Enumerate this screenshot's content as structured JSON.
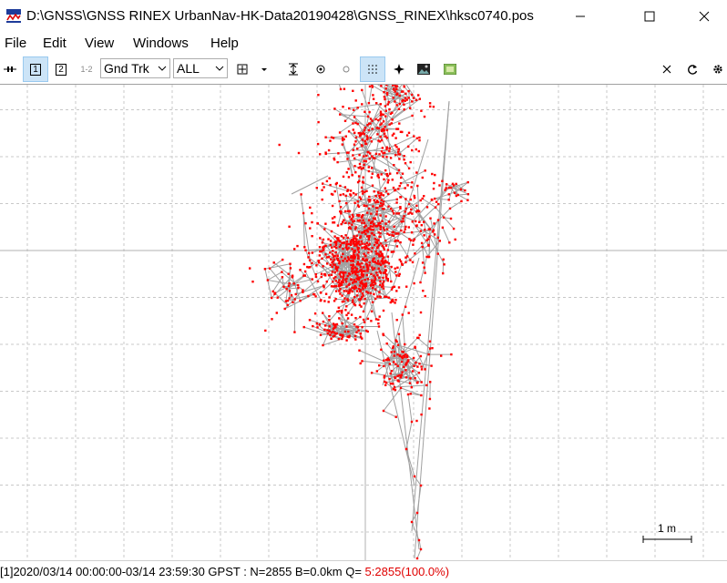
{
  "window": {
    "title": "D:\\GNSS\\GNSS RINEX UrbanNav-HK-Data20190428\\GNSS_RINEX\\hksc0740.pos",
    "icon": "rtkplot-app-icon"
  },
  "menu": [
    "File",
    "Edit",
    "View",
    "Windows",
    "Help"
  ],
  "toolbar": {
    "btn1": "1",
    "btn2": "2",
    "btn12": "1-2",
    "plot_type": "Gnd Trk",
    "sat_filter": "ALL"
  },
  "plot": {
    "scale_label": "1 m",
    "marker_color": "#ff0000",
    "line_color": "#a0a0a0"
  },
  "status": {
    "prefix": "[1]2020/03/14 00:00:00-03/14 23:59:30 GPST : N=2855 B=0.0km Q= ",
    "quality": "5:2855(100.0%)"
  }
}
